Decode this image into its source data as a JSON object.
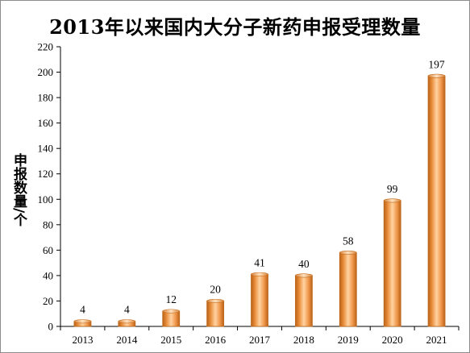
{
  "chart_data": {
    "type": "bar",
    "title": "2013年以来国内大分子新药申报受理数量",
    "xlabel": "",
    "ylabel": "申报数量/个",
    "categories": [
      "2013",
      "2014",
      "2015",
      "2016",
      "2017",
      "2018",
      "2019",
      "2020",
      "2021"
    ],
    "values": [
      4,
      4,
      12,
      20,
      41,
      40,
      58,
      99,
      197
    ],
    "ylim": [
      0,
      220
    ],
    "yticks": [
      0,
      20,
      40,
      60,
      80,
      100,
      120,
      140,
      160,
      180,
      200,
      220
    ],
    "grid": false,
    "legend": "none",
    "bar_color": "#f0a050",
    "bar_edge_color": "#c06a1c"
  }
}
